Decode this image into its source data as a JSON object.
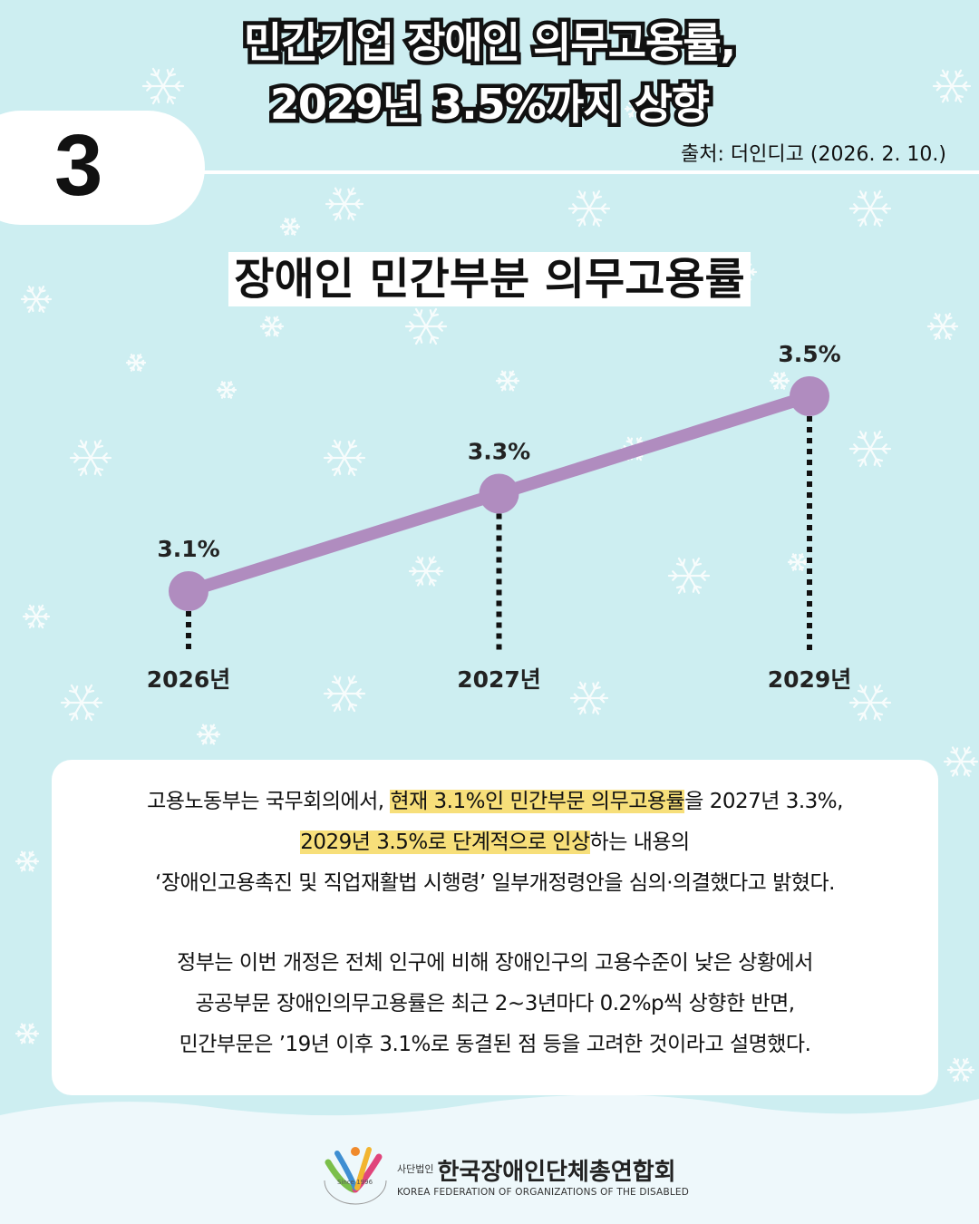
{
  "header": {
    "title_lines": [
      "민간기업 장애인 의무고용률,",
      "2029년 3.5%까지 상향"
    ],
    "number": "3",
    "source": "출처: 더인디고 (2026. 2. 10.)"
  },
  "chart_data": {
    "type": "line",
    "title": "장애인 민간부분 의무고용률",
    "categories": [
      "2026년",
      "2027년",
      "2029년"
    ],
    "values": [
      3.1,
      3.3,
      3.5
    ],
    "value_labels": [
      "3.1%",
      "3.3%",
      "3.5%"
    ],
    "color": "#b08cbf"
  },
  "body": {
    "paragraphs": [
      [
        [
          "고용노동부는 국무회의에서, ",
          "현재 3.1%인 민간부문 의무고용률",
          "을 2027년 3.3%,"
        ],
        [
          "2029년 3.5%로 단계적으로 인상",
          "하는 내용의"
        ],
        [
          "‘장애인고용촉진 및 직업재활법 시행령’ 일부개정령안을 심의·의결했다고 밝혔다."
        ]
      ],
      [
        [
          "정부는 이번 개정은 전체 인구에 비해 장애인구의 고용수준이 낮은 상황에서"
        ],
        [
          "공공부문 장애인의무고용률은 최근 2~3년마다 0.2%p씩 상향한 반면,"
        ],
        [
          "민간부문은 ’19년 이후 3.1%로 동결된 점 등을 고려한 것이라고 설명했다."
        ]
      ]
    ]
  },
  "footer": {
    "prefix": "사단법인",
    "org": "한국장애인단체총연합회",
    "english": "KOREA FEDERATION OF ORGANIZATIONS OF THE DISABLED",
    "since": "Since 1996"
  }
}
